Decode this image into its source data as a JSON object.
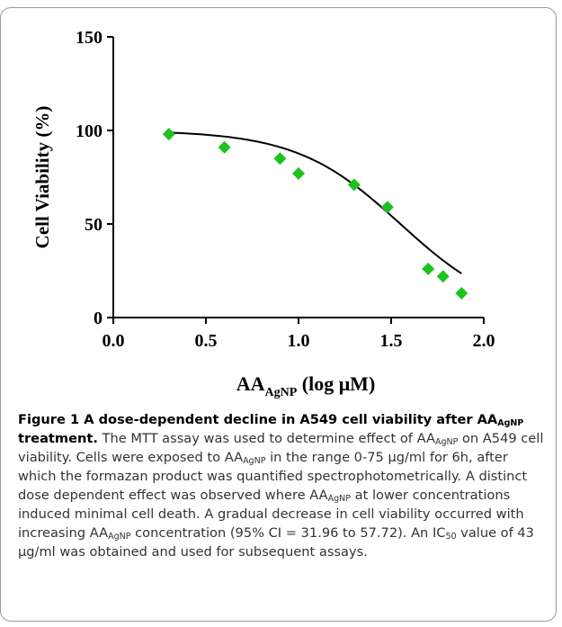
{
  "chart_data": {
    "type": "scatter",
    "title": "",
    "xlabel": "AA",
    "xlabel_sub": "AgNP",
    "xlabel_suffix": " (log  μM)",
    "ylabel": "Cell Viability (%)",
    "xlim": [
      0.0,
      2.0
    ],
    "ylim": [
      0,
      150
    ],
    "x_ticks": [
      "0.0",
      "0.5",
      "1.0",
      "1.5",
      "2.0"
    ],
    "y_ticks": [
      "0",
      "50",
      "100",
      "150"
    ],
    "x_tick_values": [
      0.0,
      0.5,
      1.0,
      1.5,
      2.0
    ],
    "y_tick_values": [
      0,
      50,
      100,
      150
    ],
    "marker": "diamond",
    "marker_color": "#1ec21e",
    "fit_color": "#000000",
    "points": [
      {
        "x": 0.3,
        "y": 98
      },
      {
        "x": 0.6,
        "y": 91
      },
      {
        "x": 0.9,
        "y": 85
      },
      {
        "x": 1.0,
        "y": 77
      },
      {
        "x": 1.3,
        "y": 71
      },
      {
        "x": 1.48,
        "y": 59
      },
      {
        "x": 1.7,
        "y": 26
      },
      {
        "x": 1.78,
        "y": 22
      },
      {
        "x": 1.88,
        "y": 13
      }
    ],
    "fit": {
      "top": 100,
      "bottom": 0,
      "log_ec50": 1.55,
      "hill": -1.55,
      "x_range": [
        0.3,
        1.88
      ]
    }
  },
  "caption": {
    "figure_label": "Figure 1",
    "title_part1": " A dose-dependent decline in A549 cell viability after ",
    "title_aa": "AA",
    "title_sub": "AgNP",
    "title_part2": " treatment.",
    "t1": " The MTT assay was used to determine effect of ",
    "aa": "AA",
    "sub": "AgNP",
    "t2": " on A549 cell viability. Cells were exposed to ",
    "t3": " in the range 0-75 μg/ml for 6h, after which the formazan product was quantified spectrophotometrically. A distinct dose dependent effect was observed where ",
    "t4": " at lower concentrations induced minimal cell death. A gradual decrease in cell viability occurred with increasing ",
    "t5": " concentration (95% CI = 31.96 to 57.72). An IC",
    "ic_sub": "50",
    "t6": " value of 43 μg/ml was obtained and used for subsequent assays."
  }
}
